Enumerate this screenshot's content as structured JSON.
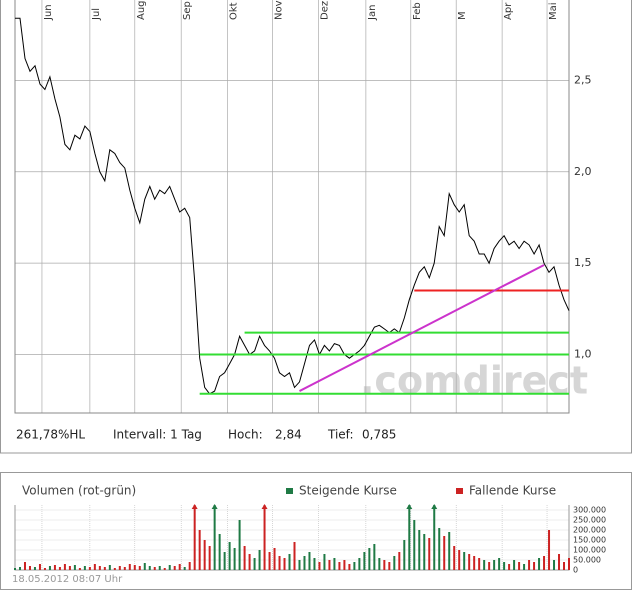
{
  "chart_data": [
    {
      "type": "line",
      "color": "#000000",
      "watermark": ".comdirect",
      "values": [
        2.84,
        2.84,
        2.62,
        2.55,
        2.58,
        2.48,
        2.45,
        2.52,
        2.4,
        2.3,
        2.15,
        2.12,
        2.2,
        2.18,
        2.25,
        2.22,
        2.1,
        2.0,
        1.95,
        2.12,
        2.1,
        2.05,
        2.02,
        1.9,
        1.8,
        1.72,
        1.85,
        1.92,
        1.85,
        1.9,
        1.88,
        1.92,
        1.85,
        1.78,
        1.8,
        1.75,
        1.4,
        0.98,
        0.82,
        0.785,
        0.8,
        0.88,
        0.9,
        0.95,
        1.0,
        1.1,
        1.05,
        1.0,
        1.02,
        1.1,
        1.05,
        1.02,
        0.98,
        0.9,
        0.88,
        0.9,
        0.82,
        0.85,
        0.95,
        1.05,
        1.08,
        1.0,
        1.05,
        1.02,
        1.06,
        1.05,
        1.0,
        0.98,
        1.0,
        1.02,
        1.05,
        1.1,
        1.15,
        1.16,
        1.14,
        1.12,
        1.14,
        1.12,
        1.2,
        1.3,
        1.38,
        1.45,
        1.48,
        1.42,
        1.5,
        1.7,
        1.65,
        1.88,
        1.82,
        1.78,
        1.82,
        1.65,
        1.62,
        1.55,
        1.55,
        1.5,
        1.58,
        1.62,
        1.65,
        1.6,
        1.62,
        1.58,
        1.62,
        1.6,
        1.55,
        1.6,
        1.5,
        1.45,
        1.48,
        1.38,
        1.3,
        1.24
      ],
      "xlim": [
        0,
        111
      ],
      "xticks": [
        {
          "value": 5.4,
          "label": "Jun"
        },
        {
          "value": 15,
          "label": "Jul"
        },
        {
          "value": 24,
          "label": "Aug"
        },
        {
          "value": 33.3,
          "label": "Sep"
        },
        {
          "value": 42.6,
          "label": "Okt"
        },
        {
          "value": 51.6,
          "label": "Nov"
        },
        {
          "value": 60.8,
          "label": "Dez"
        },
        {
          "value": 70.3,
          "label": "Jan"
        },
        {
          "value": 79.3,
          "label": "Feb"
        },
        {
          "value": 88.4,
          "label": "M"
        },
        {
          "value": 97.6,
          "label": "Apr"
        },
        {
          "value": 106.6,
          "label": "Mai"
        }
      ],
      "ylim": [
        0.68,
        2.94
      ],
      "yticks": [
        {
          "value": 1,
          "label": "1,0"
        },
        {
          "value": 1.5,
          "label": "1,5"
        },
        {
          "value": 2,
          "label": "2,0"
        },
        {
          "value": 2.5,
          "label": "2,5"
        }
      ],
      "grid": true,
      "levels": [
        {
          "color": "#33dd33",
          "x1": 46,
          "x2": 111,
          "y1": 1.12,
          "y2": 1.12
        },
        {
          "color": "#33dd33",
          "x1": 37,
          "x2": 111,
          "y1": 1.0,
          "y2": 1.0
        },
        {
          "color": "#33dd33",
          "x1": 37,
          "x2": 111,
          "y1": 0.785,
          "y2": 0.785
        },
        {
          "color": "#ee2222",
          "x1": 80,
          "x2": 111,
          "y1": 1.35,
          "y2": 1.35
        },
        {
          "color": "#cc33cc",
          "x1": 57,
          "x2": 106,
          "y1": 0.8,
          "y2": 1.49
        }
      ],
      "footer": [
        "261,78%HL",
        "Intervall: 1 Tag",
        "Hoch:",
        "2,84",
        "Tief:",
        "0,785"
      ]
    },
    {
      "type": "bar",
      "title": "Volumen (rot-grün)",
      "timestamp": "18.05.2012 08:07 Uhr",
      "xlim": [
        0,
        111
      ],
      "ylim": [
        0,
        325000
      ],
      "yticks": [
        0,
        {
          "value": 50000,
          "label": "50.000"
        },
        {
          "value": 100000,
          "label": "100.000"
        },
        {
          "value": 150000,
          "label": "150.000"
        },
        {
          "value": 200000,
          "label": "200.000"
        },
        {
          "value": 250000,
          "label": "250.000"
        },
        {
          "value": 300000,
          "label": "300.000"
        }
      ],
      "series": [
        {
          "name": "Steigende Kurse",
          "color": "#1f7a45",
          "values": [
            10000,
            15000,
            null,
            null,
            15000,
            null,
            null,
            20000,
            null,
            null,
            null,
            null,
            25000,
            null,
            20000,
            null,
            null,
            null,
            null,
            25000,
            null,
            null,
            null,
            null,
            null,
            null,
            35000,
            20000,
            null,
            20000,
            null,
            25000,
            null,
            null,
            15000,
            null,
            null,
            null,
            null,
            null,
            330000,
            180000,
            90000,
            140000,
            110000,
            250000,
            null,
            null,
            60000,
            100000,
            null,
            null,
            null,
            null,
            null,
            80000,
            null,
            50000,
            70000,
            90000,
            60000,
            null,
            80000,
            null,
            60000,
            null,
            null,
            null,
            40000,
            60000,
            90000,
            110000,
            130000,
            60000,
            null,
            null,
            70000,
            null,
            150000,
            330000,
            250000,
            200000,
            180000,
            null,
            340000,
            210000,
            null,
            190000,
            null,
            null,
            90000,
            null,
            null,
            null,
            50000,
            null,
            50000,
            60000,
            40000,
            null,
            50000,
            null,
            30000,
            null,
            null,
            60000,
            null,
            null,
            50000,
            null,
            null,
            null
          ]
        },
        {
          "name": "Fallende Kurse",
          "color": "#cc2222",
          "values": [
            null,
            null,
            40000,
            20000,
            null,
            30000,
            10000,
            null,
            25000,
            15000,
            30000,
            20000,
            null,
            10000,
            null,
            15000,
            30000,
            20000,
            15000,
            null,
            10000,
            20000,
            15000,
            30000,
            25000,
            20000,
            null,
            null,
            15000,
            null,
            10000,
            null,
            20000,
            30000,
            null,
            40000,
            340000,
            200000,
            150000,
            120000,
            null,
            null,
            null,
            null,
            null,
            null,
            120000,
            80000,
            null,
            null,
            340000,
            90000,
            110000,
            70000,
            60000,
            null,
            140000,
            null,
            null,
            null,
            null,
            40000,
            null,
            50000,
            null,
            40000,
            50000,
            30000,
            null,
            null,
            null,
            null,
            null,
            null,
            50000,
            40000,
            null,
            90000,
            null,
            null,
            null,
            null,
            null,
            160000,
            null,
            null,
            170000,
            null,
            120000,
            100000,
            null,
            80000,
            70000,
            60000,
            null,
            40000,
            null,
            null,
            null,
            30000,
            null,
            40000,
            null,
            50000,
            40000,
            null,
            70000,
            200000,
            null,
            80000,
            40000,
            60000
          ]
        }
      ]
    }
  ]
}
